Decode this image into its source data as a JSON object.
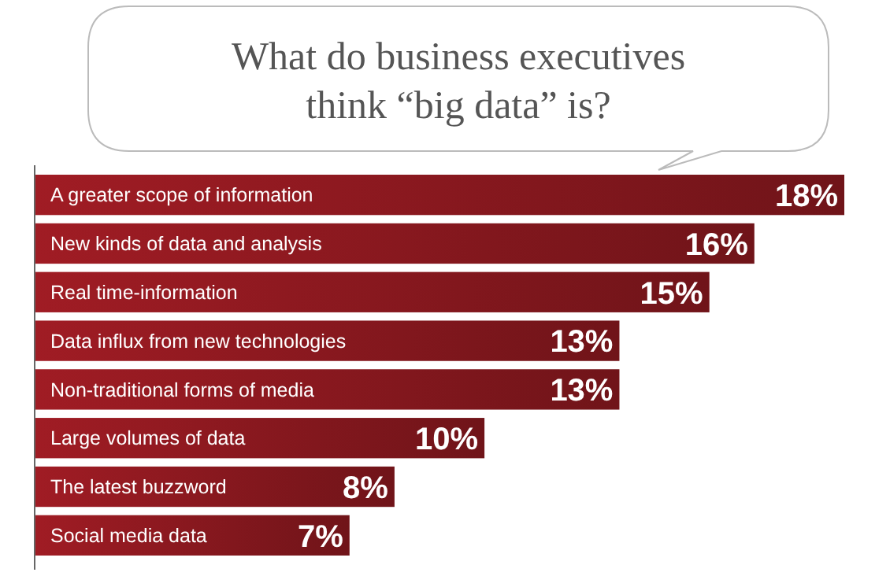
{
  "chart_data": {
    "type": "bar",
    "orientation": "horizontal",
    "title": "What do business executives think “big data” is?",
    "categories": [
      "A greater scope of information",
      "New kinds of data and analysis",
      "Real time-information",
      "Data influx from new technologies",
      "Non-traditional forms of media",
      "Large volumes of data",
      "The latest buzzword",
      "Social media data"
    ],
    "values": [
      18,
      16,
      15,
      13,
      13,
      10,
      8,
      7
    ],
    "value_labels": [
      "18%",
      "16%",
      "15%",
      "13%",
      "13%",
      "10%",
      "8%",
      "7%"
    ],
    "color": "#a01c24"
  }
}
